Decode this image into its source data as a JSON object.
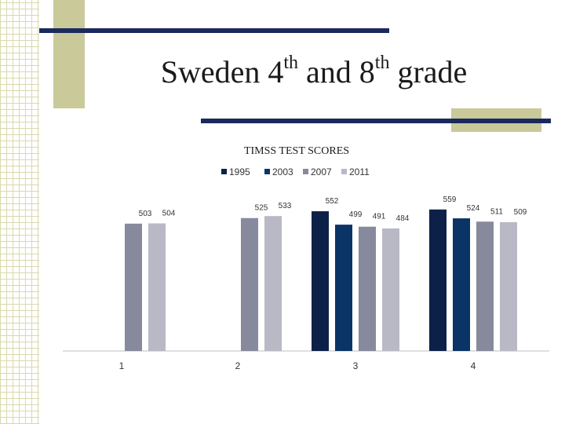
{
  "slide": {
    "title_word1": "Sweden 4",
    "title_sup1": "th",
    "title_word2": " and 8",
    "title_sup2": "th",
    "title_word3": " grade"
  },
  "colors": {
    "accent_line": "#1a2a5c",
    "olive": "#c9c99a"
  },
  "chart_data": {
    "type": "bar",
    "title": "TIMSS TEST SCORES",
    "categories": [
      "1",
      "2",
      "3",
      "4"
    ],
    "legend_position": "top",
    "grid": false,
    "ylim": [
      0,
      600
    ],
    "series": [
      {
        "name": "1995",
        "color": "#0d2148",
        "values": [
          null,
          null,
          552,
          559
        ]
      },
      {
        "name": "2003",
        "color": "#0a3466",
        "values": [
          null,
          null,
          499,
          524
        ]
      },
      {
        "name": "2007",
        "color": "#868a9c",
        "values": [
          503,
          525,
          491,
          511
        ]
      },
      {
        "name": "2011",
        "color": "#b8b9c4",
        "values": [
          504,
          533,
          484,
          509
        ]
      }
    ]
  }
}
